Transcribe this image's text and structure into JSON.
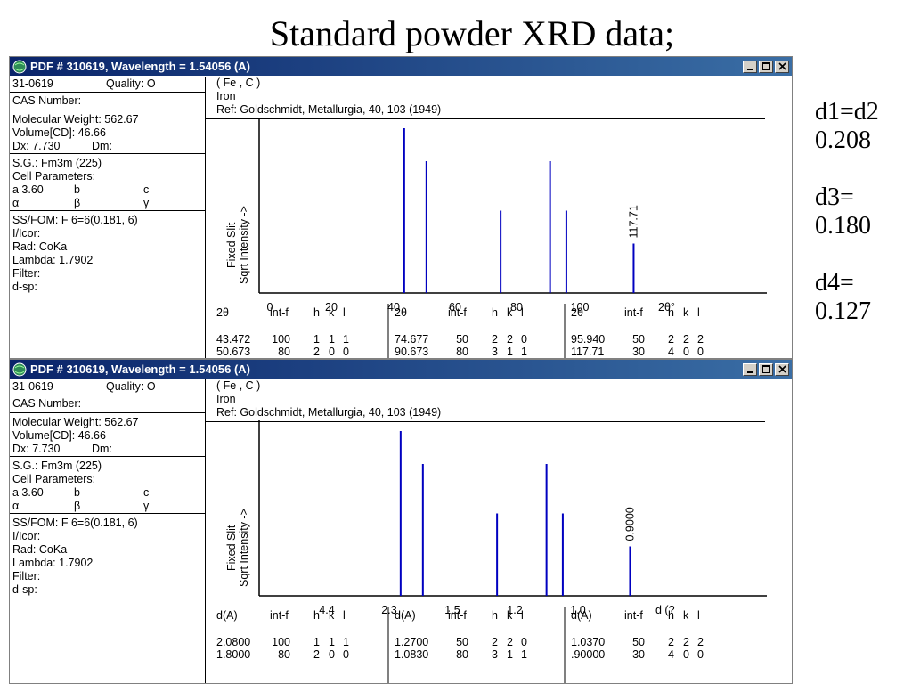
{
  "slide": {
    "title": "Standard powder XRD data;",
    "notes": [
      "d1=d2",
      "0.208",
      "",
      "d3=",
      "0.180",
      "",
      "d4=",
      "0.127"
    ]
  },
  "window_top": {
    "title": "PDF # 310619, Wavelength = 1.54056  (A)",
    "left": {
      "pdf_number": "31-0619",
      "quality": "Quality: O",
      "cas": "CAS Number:",
      "mol_weight": "Molecular Weight:  562.67",
      "volume": "Volume[CD]:   46.66",
      "dx": "Dx:  7.730",
      "dm": "Dm:",
      "sg": "S.G.: Fm3m (225)",
      "cell": "Cell Parameters:",
      "a": "a  3.60",
      "b": "b",
      "c": "c",
      "alpha": "α",
      "beta": "β",
      "gamma": "γ",
      "ssfom": "SS/FOM: F 6=6(0.181,  6)",
      "icor": "I/Icor:",
      "rad": "Rad: CoKa",
      "lambda": "Lambda: 1.7902",
      "filter": "Filter:",
      "dsp": "d-sp:"
    },
    "header": {
      "formula": "( Fe , C )",
      "name": "Iron",
      "ref": "Ref: Goldschmidt, Metallurgia, 40, 103 (1949)"
    },
    "ylabel1": "Fixed   Slit",
    "ylabel2": "Sqrt  Intensity  ->",
    "peak_label": "117.71",
    "table": {
      "headers": [
        "2θ",
        "int-f",
        "h",
        "k",
        "l"
      ],
      "rows": [
        [
          "43.472",
          "100",
          "1",
          "1",
          "1",
          "74.677",
          "50",
          "2",
          "2",
          "0",
          "95.940",
          "50",
          "2",
          "2",
          "2"
        ],
        [
          "50.673",
          "80",
          "2",
          "0",
          "0",
          "90.673",
          "80",
          "3",
          "1",
          "1",
          "117.71",
          "30",
          "4",
          "0",
          "0"
        ]
      ]
    }
  },
  "window_bottom": {
    "title": "PDF # 310619, Wavelength = 1.54056  (A)",
    "ylabel1": "Fixed   Slit",
    "ylabel2": "Sqrt  Intensity  ->",
    "peak_label": "0.9000",
    "table": {
      "headers": [
        "d(A)",
        "int-f",
        "h",
        "k",
        "l"
      ],
      "rows": [
        [
          "2.0800",
          "100",
          "1",
          "1",
          "1",
          "1.2700",
          "50",
          "2",
          "2",
          "0",
          "1.0370",
          "50",
          "2",
          "2",
          "2"
        ],
        [
          "1.8000",
          "80",
          "2",
          "0",
          "0",
          "1.0830",
          "80",
          "3",
          "1",
          "1",
          ".90000",
          "30",
          "4",
          "0",
          "0"
        ]
      ]
    }
  },
  "chart_data": [
    {
      "type": "bar",
      "xlabel": "2θ°",
      "xticks": [
        "0",
        "20",
        "40",
        "60",
        "80",
        "100"
      ],
      "xlim": [
        0,
        130
      ],
      "x": [
        43.472,
        50.673,
        74.677,
        90.673,
        95.94,
        117.71
      ],
      "values": [
        100,
        80,
        50,
        80,
        50,
        30
      ],
      "color": "#0000c0",
      "annotation": "117.71"
    },
    {
      "type": "bar",
      "xlabel": "d (?",
      "xticks": [
        "4.4",
        "2.3",
        "1.5",
        "1.2",
        "1.0"
      ],
      "x": [
        2.08,
        1.8,
        1.27,
        1.083,
        1.037,
        0.9
      ],
      "values": [
        100,
        80,
        50,
        80,
        50,
        30
      ],
      "color": "#0000c0",
      "annotation": "0.9000"
    }
  ]
}
